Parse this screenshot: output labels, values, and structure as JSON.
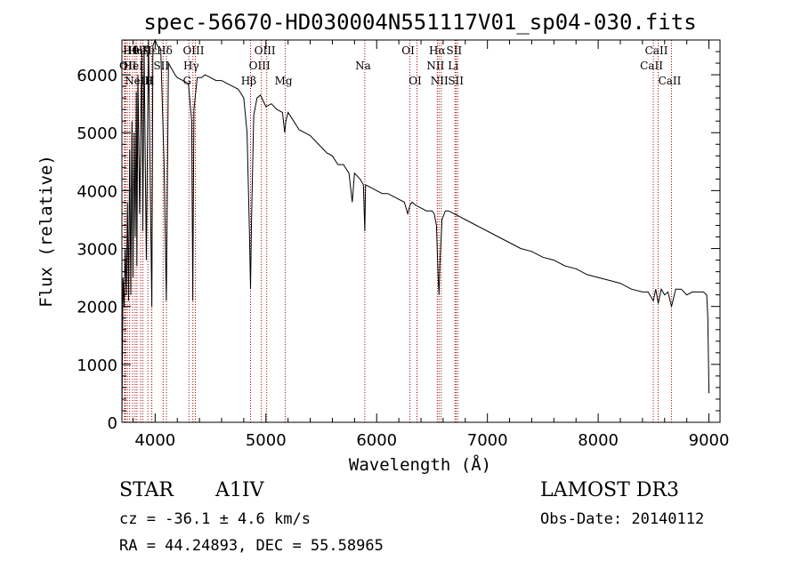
{
  "chart_data": {
    "type": "line",
    "title": "spec-56670-HD030004N551117V01_sp04-030.fits",
    "xlabel": "Wavelength (Å)",
    "ylabel": "Flux (relative)",
    "xlim": [
      3700,
      9100
    ],
    "ylim": [
      0,
      6600
    ],
    "xticks": [
      4000,
      5000,
      6000,
      7000,
      8000,
      9000
    ],
    "yticks": [
      0,
      1000,
      2000,
      3000,
      4000,
      5000,
      6000
    ],
    "grid": false,
    "series": [
      {
        "name": "spectrum",
        "x": [
          3700,
          3710,
          3720,
          3730,
          3740,
          3750,
          3760,
          3770,
          3780,
          3790,
          3800,
          3810,
          3820,
          3830,
          3835,
          3845,
          3860,
          3880,
          3889,
          3900,
          3920,
          3940,
          3960,
          3970,
          3980,
          4000,
          4020,
          4050,
          4080,
          4101,
          4120,
          4150,
          4180,
          4200,
          4250,
          4300,
          4330,
          4340,
          4350,
          4380,
          4420,
          4450,
          4500,
          4550,
          4600,
          4650,
          4700,
          4750,
          4800,
          4830,
          4850,
          4861,
          4870,
          4890,
          4920,
          4950,
          5000,
          5050,
          5100,
          5150,
          5170,
          5180,
          5200,
          5250,
          5300,
          5350,
          5400,
          5450,
          5500,
          5550,
          5600,
          5650,
          5700,
          5750,
          5780,
          5800,
          5850,
          5880,
          5893,
          5900,
          5950,
          6000,
          6050,
          6100,
          6150,
          6200,
          6250,
          6280,
          6300,
          6320,
          6350,
          6400,
          6450,
          6500,
          6520,
          6540,
          6555,
          6563,
          6570,
          6590,
          6620,
          6650,
          6700,
          6750,
          6800,
          6900,
          7000,
          7100,
          7200,
          7300,
          7400,
          7500,
          7600,
          7700,
          7800,
          7900,
          8000,
          8100,
          8200,
          8300,
          8400,
          8450,
          8498,
          8520,
          8542,
          8570,
          8600,
          8630,
          8662,
          8700,
          8750,
          8800,
          8850,
          8900,
          8950,
          8980,
          8990,
          9000
        ],
        "values": [
          0,
          2500,
          2000,
          3000,
          2200,
          3800,
          2100,
          4700,
          2200,
          5200,
          2500,
          5000,
          3200,
          5700,
          2700,
          6000,
          3600,
          6400,
          3300,
          6500,
          2800,
          6600,
          3400,
          2000,
          6500,
          6600,
          6500,
          6450,
          4500,
          2100,
          6200,
          6100,
          6000,
          5950,
          5900,
          5850,
          5200,
          2100,
          5400,
          5950,
          5950,
          6000,
          5950,
          5900,
          5900,
          5850,
          5800,
          5750,
          5600,
          5000,
          3400,
          2300,
          3500,
          5300,
          5600,
          5650,
          5450,
          5500,
          5400,
          5350,
          5000,
          5200,
          5350,
          5200,
          5050,
          5000,
          4950,
          4850,
          4750,
          4650,
          4600,
          4450,
          4450,
          4300,
          3800,
          4300,
          4200,
          4100,
          3300,
          4100,
          4050,
          4000,
          3950,
          3950,
          3900,
          3850,
          3800,
          3600,
          3750,
          3800,
          3750,
          3700,
          3650,
          3650,
          3600,
          3400,
          2500,
          2200,
          2700,
          3500,
          3650,
          3650,
          3600,
          3550,
          3500,
          3400,
          3300,
          3200,
          3100,
          3000,
          2950,
          2850,
          2800,
          2700,
          2650,
          2550,
          2500,
          2450,
          2400,
          2300,
          2250,
          2250,
          2100,
          2300,
          2050,
          2300,
          2200,
          2250,
          2000,
          2300,
          2300,
          2200,
          2250,
          2250,
          2250,
          2200,
          1800,
          500
        ]
      }
    ],
    "lines": [
      {
        "x": 3722,
        "labels": []
      },
      {
        "x": 3727,
        "labels": []
      },
      {
        "x": 3734,
        "labels": []
      },
      {
        "x": 3750,
        "labels": []
      },
      {
        "x": 3770,
        "labels": [
          "OII"
        ],
        "row": 1
      },
      {
        "x": 3797,
        "labels": [
          "Hθ"
        ],
        "row": 0
      },
      {
        "x": 3819,
        "labels": [
          "HeI"
        ],
        "row": 1
      },
      {
        "x": 3835,
        "labels": [
          "Hη"
        ],
        "row": 0
      },
      {
        "x": 3869,
        "labels": [
          "NeIII"
        ],
        "row": 2
      },
      {
        "x": 3889,
        "labels": [
          "Hζ"
        ],
        "row": 0
      },
      {
        "x": 3934,
        "labels": [
          "K"
        ],
        "row": 0
      },
      {
        "x": 3968,
        "labels": [
          "H"
        ],
        "row": 2
      },
      {
        "x": 3970,
        "labels": [
          "Hε"
        ],
        "row": 0
      },
      {
        "x": 4072,
        "labels": [
          "SII"
        ],
        "row": 1
      },
      {
        "x": 4102,
        "labels": [
          "Hδ"
        ],
        "row": 0
      },
      {
        "x": 4305,
        "labels": [
          "G"
        ],
        "row": 2
      },
      {
        "x": 4341,
        "labels": [
          "Hγ"
        ],
        "row": 1
      },
      {
        "x": 4363,
        "labels": [
          "OIII"
        ],
        "row": 0
      },
      {
        "x": 4861,
        "labels": [
          "Hβ"
        ],
        "row": 2
      },
      {
        "x": 4959,
        "labels": [
          "OIII"
        ],
        "row": 1
      },
      {
        "x": 5007,
        "labels": [
          "OIII"
        ],
        "row": 0
      },
      {
        "x": 5175,
        "labels": [
          "Mg"
        ],
        "row": 2
      },
      {
        "x": 5893,
        "labels": [
          "Na"
        ],
        "row": 1
      },
      {
        "x": 6300,
        "labels": [
          "OI"
        ],
        "row": 0
      },
      {
        "x": 6364,
        "labels": [
          "OI"
        ],
        "row": 2
      },
      {
        "x": 6548,
        "labels": [
          "NII"
        ],
        "row": 1
      },
      {
        "x": 6563,
        "labels": [
          "Hα"
        ],
        "row": 0
      },
      {
        "x": 6583,
        "labels": [
          "NII"
        ],
        "row": 2
      },
      {
        "x": 6707,
        "labels": [
          "Li"
        ],
        "row": 1
      },
      {
        "x": 6716,
        "labels": [
          "SII"
        ],
        "row": 0
      },
      {
        "x": 6731,
        "labels": [
          "SII"
        ],
        "row": 2
      },
      {
        "x": 8498,
        "labels": [
          "CaII"
        ],
        "row": 1
      },
      {
        "x": 8542,
        "labels": [
          "CaII"
        ],
        "row": 0
      },
      {
        "x": 8662,
        "labels": [
          "CaII"
        ],
        "row": 2
      }
    ]
  },
  "info": {
    "object_class": "STAR",
    "subclass": "A1IV",
    "survey": "LAMOST DR3",
    "cz": "cz = -36.1 ± 4.6 km/s",
    "obs_date": "Obs-Date: 20140112",
    "radec": "RA =  44.24893, DEC =  55.58965"
  },
  "colors": {
    "ink": "#000000",
    "line_marker": "#aa0000",
    "background": "#ffffff"
  }
}
